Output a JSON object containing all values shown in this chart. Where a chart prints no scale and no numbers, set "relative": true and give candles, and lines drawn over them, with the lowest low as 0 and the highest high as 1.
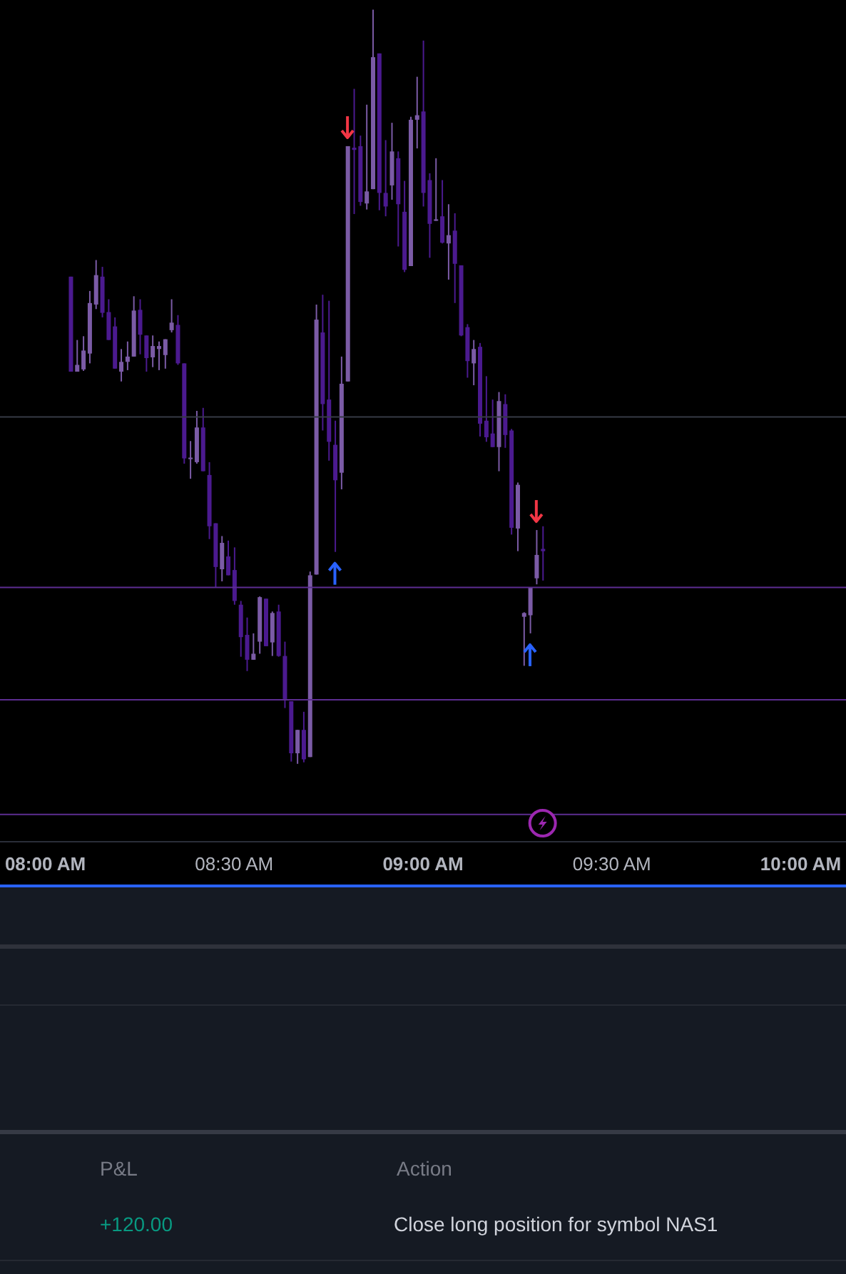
{
  "chart_data": {
    "type": "candlestick",
    "relative": true,
    "x": [
      8.0667,
      8.0833,
      8.1,
      8.1167,
      8.1333,
      8.15,
      8.1667,
      8.1833,
      8.2,
      8.2167,
      8.2333,
      8.25,
      8.2667,
      8.2833,
      8.3,
      8.3167,
      8.3333,
      8.35,
      8.3667,
      8.3833,
      8.4,
      8.4167,
      8.4333,
      8.45,
      8.4667,
      8.4833,
      8.5,
      8.5167,
      8.5333,
      8.55,
      8.5667,
      8.5833,
      8.6,
      8.6167,
      8.6333,
      8.65,
      8.6667,
      8.6833,
      8.7,
      8.7167,
      8.7333,
      8.75,
      8.7667,
      8.7833,
      8.8,
      8.8167,
      8.8333,
      8.85,
      8.8667,
      8.8833,
      8.9,
      8.9167,
      8.9333,
      8.95,
      8.9667,
      8.9833,
      9,
      9.0167,
      9.0333,
      9.05,
      9.0667,
      9.0833,
      9.1,
      9.1167,
      9.1333,
      9.15,
      9.1667,
      9.1833,
      9.2,
      9.2167,
      9.2333,
      9.25,
      9.2667,
      9.2833,
      9.3,
      9.3167
    ],
    "ohlc": [
      [
        0.646,
        0.646,
        0.52,
        0.52
      ],
      [
        0.52,
        0.562,
        0.52,
        0.529
      ],
      [
        0.523,
        0.567,
        0.521,
        0.548
      ],
      [
        0.544,
        0.627,
        0.531,
        0.611
      ],
      [
        0.609,
        0.668,
        0.603,
        0.648
      ],
      [
        0.646,
        0.659,
        0.592,
        0.598
      ],
      [
        0.599,
        0.616,
        0.562,
        0.562
      ],
      [
        0.58,
        0.592,
        0.524,
        0.524
      ],
      [
        0.52,
        0.55,
        0.507,
        0.533
      ],
      [
        0.533,
        0.56,
        0.522,
        0.54
      ],
      [
        0.54,
        0.62,
        0.54,
        0.601
      ],
      [
        0.602,
        0.616,
        0.543,
        0.569
      ],
      [
        0.568,
        0.568,
        0.52,
        0.538
      ],
      [
        0.539,
        0.568,
        0.526,
        0.554
      ],
      [
        0.55,
        0.56,
        0.522,
        0.554
      ],
      [
        0.542,
        0.563,
        0.524,
        0.563
      ],
      [
        0.575,
        0.616,
        0.572,
        0.585
      ],
      [
        0.582,
        0.595,
        0.529,
        0.531
      ],
      [
        0.531,
        0.531,
        0.398,
        0.405
      ],
      [
        0.404,
        0.428,
        0.378,
        0.406
      ],
      [
        0.4,
        0.468,
        0.398,
        0.446
      ],
      [
        0.446,
        0.472,
        0.388,
        0.388
      ],
      [
        0.383,
        0.4,
        0.298,
        0.315
      ],
      [
        0.319,
        0.319,
        0.234,
        0.261
      ],
      [
        0.258,
        0.302,
        0.242,
        0.293
      ],
      [
        0.275,
        0.296,
        0.25,
        0.25
      ],
      [
        0.257,
        0.287,
        0.211,
        0.216
      ],
      [
        0.211,
        0.216,
        0.142,
        0.168
      ],
      [
        0.171,
        0.194,
        0.123,
        0.138
      ],
      [
        0.138,
        0.173,
        0.138,
        0.146
      ],
      [
        0.162,
        0.222,
        0.146,
        0.221
      ],
      [
        0.219,
        0.219,
        0.156,
        0.156
      ],
      [
        0.161,
        0.202,
        0.143,
        0.2
      ],
      [
        0.202,
        0.211,
        0.142,
        0.143
      ],
      [
        0.143,
        0.162,
        0.074,
        0.086
      ],
      [
        0.083,
        0.083,
        0.003,
        0.014
      ],
      [
        0.014,
        0.045,
        0,
        0.045
      ],
      [
        0.045,
        0.069,
        0.002,
        0.006
      ],
      [
        0.009,
        0.255,
        0.009,
        0.25
      ],
      [
        0.251,
        0.609,
        0.251,
        0.589
      ],
      [
        0.572,
        0.622,
        0.442,
        0.477
      ],
      [
        0.483,
        0.614,
        0.402,
        0.427
      ],
      [
        0.423,
        0.455,
        0.281,
        0.376
      ],
      [
        0.386,
        0.54,
        0.364,
        0.504
      ],
      [
        0.507,
        0.819,
        0.507,
        0.819
      ],
      [
        0.817,
        0.895,
        0.729,
        0.814
      ],
      [
        0.819,
        0.833,
        0.74,
        0.745
      ],
      [
        0.743,
        0.874,
        0.735,
        0.759
      ],
      [
        0.762,
        1,
        0.762,
        0.937
      ],
      [
        0.942,
        0.942,
        0.734,
        0.757
      ],
      [
        0.757,
        0.827,
        0.726,
        0.739
      ],
      [
        0.767,
        0.85,
        0.748,
        0.812
      ],
      [
        0.803,
        0.812,
        0.686,
        0.742
      ],
      [
        0.732,
        0.773,
        0.652,
        0.655
      ],
      [
        0.66,
        0.858,
        0.66,
        0.854
      ],
      [
        0.854,
        0.911,
        0.816,
        0.86
      ],
      [
        0.865,
        0.959,
        0.739,
        0.757
      ],
      [
        0.774,
        0.783,
        0.671,
        0.716
      ],
      [
        0.72,
        0.803,
        0.72,
        0.722
      ],
      [
        0.726,
        0.774,
        0.69,
        0.691
      ],
      [
        0.69,
        0.742,
        0.642,
        0.701
      ],
      [
        0.707,
        0.73,
        0.611,
        0.663
      ],
      [
        0.661,
        0.661,
        0.567,
        0.568
      ],
      [
        0.579,
        0.583,
        0.512,
        0.534
      ],
      [
        0.531,
        0.562,
        0.502,
        0.55
      ],
      [
        0.553,
        0.558,
        0.434,
        0.451
      ],
      [
        0.455,
        0.514,
        0.427,
        0.433
      ],
      [
        0.438,
        0.483,
        0.42,
        0.42
      ],
      [
        0.42,
        0.493,
        0.388,
        0.481
      ],
      [
        0.477,
        0.49,
        0.419,
        0.436
      ],
      [
        0.442,
        0.444,
        0.304,
        0.313
      ],
      [
        0.312,
        0.373,
        0.282,
        0.37
      ],
      [
        0.195,
        0.201,
        0.13,
        0.2
      ],
      [
        0.197,
        0.234,
        0.173,
        0.234
      ],
      [
        0.246,
        0.31,
        0.238,
        0.277
      ],
      [
        0.285,
        0.315,
        0.243,
        0.282
      ]
    ],
    "colors": [
      "#4b1a8f",
      "#7b5ba6",
      "#7b5ba6",
      "#7b5ba6",
      "#7b5ba6",
      "#4b1a8f",
      "#4b1a8f",
      "#4b1a8f",
      "#7b5ba6",
      "#7b5ba6",
      "#7b5ba6",
      "#4b1a8f",
      "#4b1a8f",
      "#7b5ba6",
      "#7b5ba6",
      "#7b5ba6",
      "#7b5ba6",
      "#4b1a8f",
      "#4b1a8f",
      "#7b5ba6",
      "#7b5ba6",
      "#4b1a8f",
      "#4b1a8f",
      "#4b1a8f",
      "#7b5ba6",
      "#4b1a8f",
      "#4b1a8f",
      "#4b1a8f",
      "#4b1a8f",
      "#7b5ba6",
      "#7b5ba6",
      "#4b1a8f",
      "#7b5ba6",
      "#4b1a8f",
      "#4b1a8f",
      "#4b1a8f",
      "#7b5ba6",
      "#4b1a8f",
      "#7b5ba6",
      "#7b5ba6",
      "#4b1a8f",
      "#4b1a8f",
      "#4b1a8f",
      "#7b5ba6",
      "#7b5ba6",
      "#4b1a8f",
      "#4b1a8f",
      "#7b5ba6",
      "#7b5ba6",
      "#4b1a8f",
      "#4b1a8f",
      "#7b5ba6",
      "#4b1a8f",
      "#4b1a8f",
      "#7b5ba6",
      "#7b5ba6",
      "#4b1a8f",
      "#4b1a8f",
      "#7b5ba6",
      "#4b1a8f",
      "#7b5ba6",
      "#4b1a8f",
      "#4b1a8f",
      "#4b1a8f",
      "#7b5ba6",
      "#4b1a8f",
      "#4b1a8f",
      "#4b1a8f",
      "#7b5ba6",
      "#4b1a8f",
      "#4b1a8f",
      "#7b5ba6",
      "#7b5ba6",
      "#7b5ba6",
      "#7b5ba6",
      "#4b1a8f"
    ],
    "xlim": [
      7.88,
      10.12
    ],
    "xticks": [
      {
        "value": 8,
        "label": "08:00 AM"
      },
      {
        "value": 8.5,
        "label": "08:30 AM"
      },
      {
        "value": 9,
        "label": "09:00 AM"
      },
      {
        "value": 9.5,
        "label": "09:30 AM"
      },
      {
        "value": 10,
        "label": "10:00 AM"
      }
    ],
    "ref_lines": [
      {
        "axis": "y",
        "value": 0.46,
        "color": "#363a45"
      },
      {
        "axis": "y",
        "value": 0.234,
        "color": "#5c2d91"
      },
      {
        "axis": "y",
        "value": 0.085,
        "color": "#5c2d91"
      },
      {
        "axis": "y",
        "value": -0.067,
        "color": "#5c2d91"
      }
    ],
    "annotations": [
      "P&L",
      "Action",
      "+120.00",
      "Close long position for symbol NAS1"
    ]
  }
}
